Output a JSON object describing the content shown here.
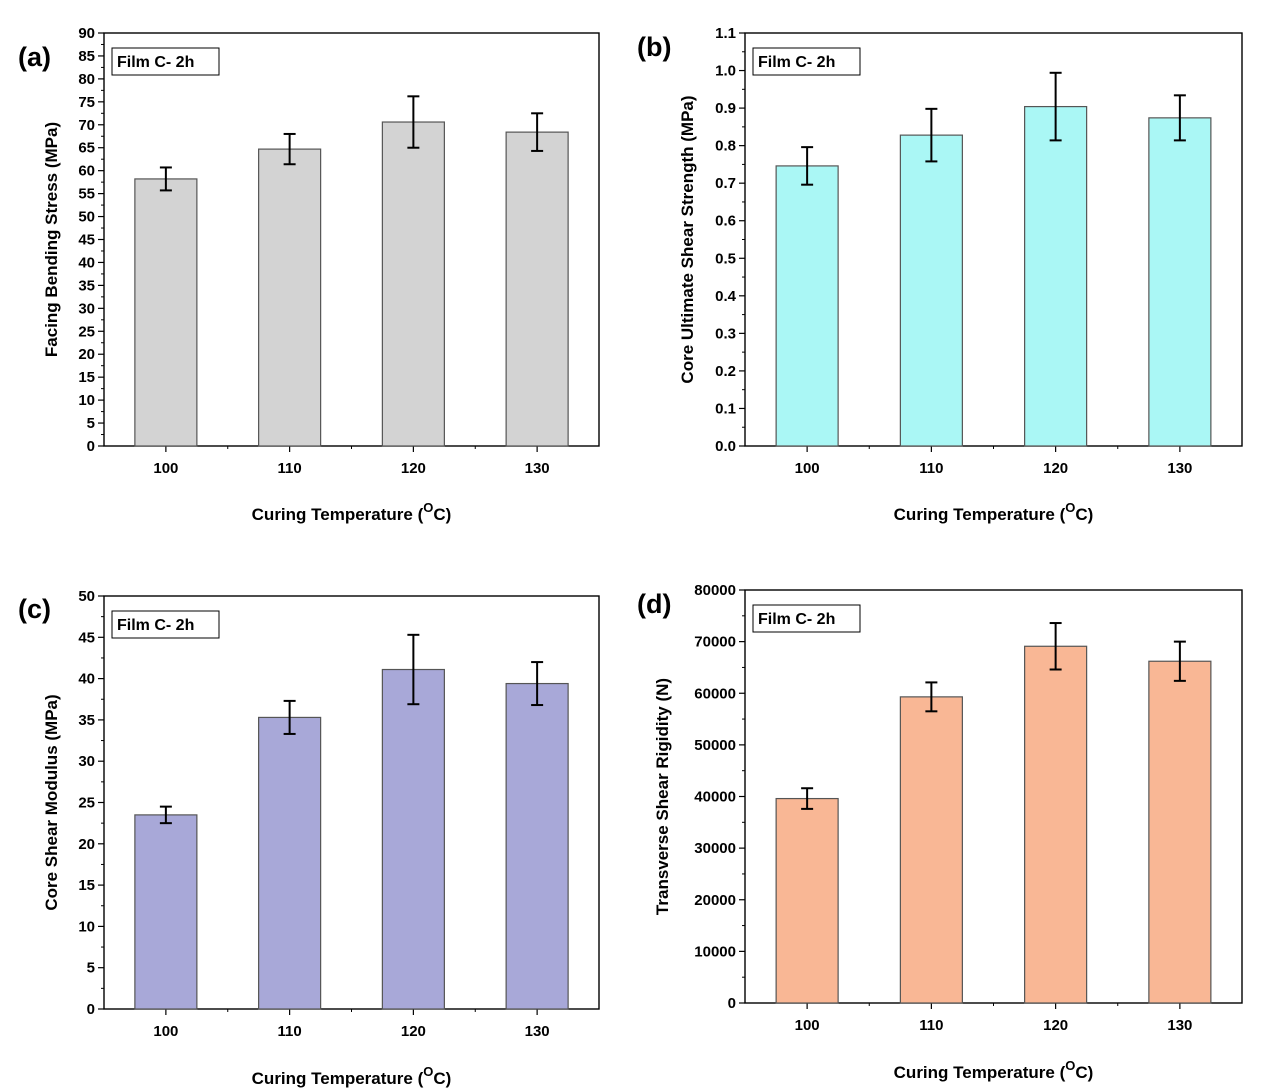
{
  "chart_data": [
    {
      "panel": "(a)",
      "type": "bar",
      "annotation": "Film C- 2h",
      "xlabel": "Curing Temperature",
      "xlabel_sup": "O",
      "xlabel_tail": "C)",
      "ylabel": "Facing Bending Stress (MPa)",
      "categories": [
        "100",
        "110",
        "120",
        "130"
      ],
      "values": [
        58.2,
        64.7,
        70.6,
        68.4
      ],
      "errors": [
        2.5,
        3.3,
        5.6,
        4.1
      ],
      "ylim": [
        0,
        90
      ],
      "yticks": [
        0,
        5,
        10,
        15,
        20,
        25,
        30,
        35,
        40,
        45,
        50,
        55,
        60,
        65,
        70,
        75,
        80,
        85,
        90
      ],
      "ytick_labels": [
        "0",
        "5",
        "10",
        "15",
        "20",
        "25",
        "30",
        "35",
        "40",
        "45",
        "50",
        "55",
        "60",
        "65",
        "70",
        "75",
        "80",
        "85",
        "90"
      ],
      "bar_color": "#d3d3d3",
      "grid": false
    },
    {
      "panel": "(b)",
      "type": "bar",
      "annotation": "Film C- 2h",
      "xlabel": "Curing Temperature",
      "xlabel_sup": "O",
      "xlabel_tail": "C)",
      "ylabel": "Core Ultimate Shear Strength (MPa)",
      "categories": [
        "100",
        "110",
        "120",
        "130"
      ],
      "values": [
        0.746,
        0.828,
        0.904,
        0.874
      ],
      "errors": [
        0.05,
        0.07,
        0.09,
        0.06
      ],
      "ylim": [
        0,
        1.1
      ],
      "yticks": [
        0,
        0.1,
        0.2,
        0.3,
        0.4,
        0.5,
        0.6,
        0.7,
        0.8,
        0.9,
        1.0,
        1.1
      ],
      "ytick_labels": [
        "0.0",
        "0.1",
        "0.2",
        "0.3",
        "0.4",
        "0.5",
        "0.6",
        "0.7",
        "0.8",
        "0.9",
        "1.0",
        "1.1"
      ],
      "bar_color": "#aaf7f5",
      "grid": false
    },
    {
      "panel": "(c)",
      "type": "bar",
      "annotation": "Film C- 2h",
      "xlabel": "Curing Temperature",
      "xlabel_sup": "O",
      "xlabel_tail": "C)",
      "ylabel": "Core Shear Modulus (MPa)",
      "categories": [
        "100",
        "110",
        "120",
        "130"
      ],
      "values": [
        23.5,
        35.3,
        41.1,
        39.4
      ],
      "errors": [
        1.0,
        2.0,
        4.2,
        2.6
      ],
      "ylim": [
        0,
        50
      ],
      "yticks": [
        0,
        5,
        10,
        15,
        20,
        25,
        30,
        35,
        40,
        45,
        50
      ],
      "ytick_labels": [
        "0",
        "5",
        "10",
        "15",
        "20",
        "25",
        "30",
        "35",
        "40",
        "45",
        "50"
      ],
      "bar_color": "#a8a8d8",
      "grid": false
    },
    {
      "panel": "(d)",
      "type": "bar",
      "annotation": "Film C- 2h",
      "xlabel": "Curing Temperature",
      "xlabel_sup": "O",
      "xlabel_tail": "C)",
      "ylabel": "Transverse Shear Rigidity (N)",
      "categories": [
        "100",
        "110",
        "120",
        "130"
      ],
      "values": [
        39600,
        59300,
        69100,
        66200
      ],
      "errors": [
        2000,
        2800,
        4500,
        3800
      ],
      "ylim": [
        0,
        80000
      ],
      "yticks": [
        0,
        10000,
        20000,
        30000,
        40000,
        50000,
        60000,
        70000,
        80000
      ],
      "ytick_labels": [
        "0",
        "10000",
        "20000",
        "30000",
        "40000",
        "50000",
        "60000",
        "70000",
        "80000"
      ],
      "bar_color": "#f9b795",
      "grid": false
    }
  ]
}
